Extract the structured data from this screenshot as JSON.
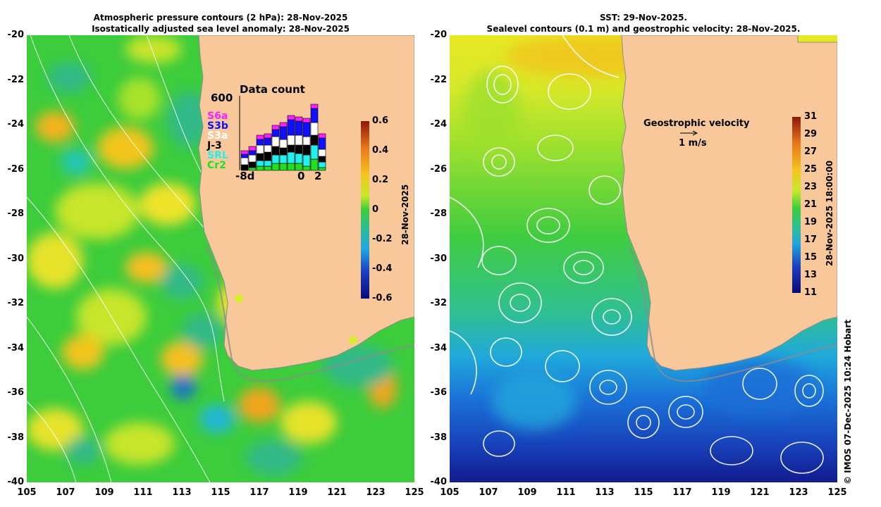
{
  "colors": {
    "land": "#f8c89b",
    "left_bg": "#3ccc3c",
    "right_bg": "#3dcc42",
    "contour": "#ffffff",
    "coast": "#8c8c8c"
  },
  "left_panel": {
    "title_line1": "Atmospheric pressure contours (2 hPa): 28-Nov-2025",
    "title_line2": "Isostatically adjusted sea level anomaly: 28-Nov-2025",
    "colorbar_date": "28-Nov-2025",
    "colorbar_ticks": [
      "0.6",
      "0.4",
      "0.2",
      "0",
      "-0.2",
      "-0.4",
      "-0.6"
    ],
    "inset": {
      "title": "Data count",
      "y_max_label": "600",
      "x_left_label": "-8d",
      "x_mid_label": "0",
      "x_right_label": "2",
      "satellites": [
        {
          "name": "S6a",
          "color": "#ff20ff"
        },
        {
          "name": "S3b",
          "color": "#1010ff"
        },
        {
          "name": "S3a",
          "color": "#ffffff"
        },
        {
          "name": "J-3",
          "color": "#000000"
        },
        {
          "name": "SRL",
          "color": "#20f0f0"
        },
        {
          "name": "Cr2",
          "color": "#20e020"
        }
      ]
    }
  },
  "right_panel": {
    "title_line1": "SST: 29-Nov-2025.",
    "title_line2": "Sealevel contours (0.1 m) and geostrophic velocity: 28-Nov-2025.",
    "legend_title": "Geostrophic velocity",
    "legend_scale": "1 m/s",
    "colorbar_date": "28-Nov-2025 18:00:00",
    "colorbar_ticks": [
      "31",
      "29",
      "27",
      "25",
      "23",
      "21",
      "19",
      "17",
      "15",
      "13",
      "11"
    ]
  },
  "axes": {
    "y_ticks": [
      "-20",
      "-22",
      "-24",
      "-26",
      "-28",
      "-30",
      "-32",
      "-34",
      "-36",
      "-38",
      "-40"
    ],
    "x_ticks": [
      "105",
      "107",
      "109",
      "111",
      "113",
      "115",
      "117",
      "119",
      "121",
      "123",
      "125"
    ]
  },
  "copyright": "© IMOS 07-Dec-2025 10:24 Hobart"
}
